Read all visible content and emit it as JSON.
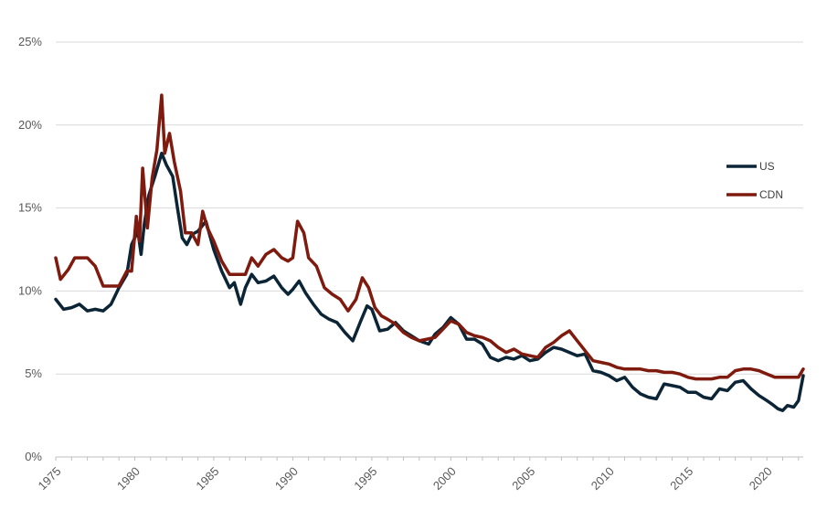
{
  "chart_data": {
    "type": "line",
    "title": "",
    "xlabel": "",
    "ylabel": "",
    "xlim": [
      1975,
      2022.3
    ],
    "ylim": [
      0,
      25
    ],
    "grid": true,
    "legend_position": "right",
    "x_ticks": [
      1975,
      1980,
      1985,
      1990,
      1995,
      2000,
      2005,
      2010,
      2015,
      2020
    ],
    "x_tick_labels": [
      "1975",
      "1980",
      "1985",
      "1990",
      "1995",
      "2000",
      "2005",
      "2010",
      "2015",
      "2020"
    ],
    "y_ticks": [
      0,
      5,
      10,
      15,
      20,
      25
    ],
    "y_tick_labels": [
      "0%",
      "5%",
      "10%",
      "15%",
      "20%",
      "25%"
    ],
    "series": [
      {
        "name": "US",
        "color": "#0b2536",
        "x": [
          1975,
          1975.5,
          1976,
          1976.5,
          1977,
          1977.5,
          1978,
          1978.5,
          1979,
          1979.5,
          1979.8,
          1980.2,
          1980.4,
          1980.6,
          1980.9,
          1981.3,
          1981.7,
          1982,
          1982.4,
          1982.7,
          1983,
          1983.3,
          1983.6,
          1984,
          1984.5,
          1985,
          1985.5,
          1986,
          1986.3,
          1986.7,
          1987,
          1987.4,
          1987.8,
          1988.3,
          1988.8,
          1989.3,
          1989.7,
          1990,
          1990.4,
          1990.8,
          1991.3,
          1991.8,
          1992.3,
          1992.8,
          1993.3,
          1993.8,
          1994.3,
          1994.7,
          1995,
          1995.5,
          1996,
          1996.5,
          1997,
          1997.5,
          1998,
          1998.6,
          1999,
          1999.5,
          2000,
          2000.5,
          2001,
          2001.5,
          2002,
          2002.5,
          2003,
          2003.5,
          2004,
          2004.5,
          2005,
          2005.5,
          2006,
          2006.5,
          2007,
          2007.5,
          2008,
          2008.5,
          2009,
          2009.5,
          2010,
          2010.5,
          2011,
          2011.5,
          2012,
          2012.5,
          2013,
          2013.5,
          2014,
          2014.5,
          2015,
          2015.5,
          2016,
          2016.5,
          2017,
          2017.5,
          2018,
          2018.5,
          2019,
          2019.5,
          2020,
          2020.3,
          2020.7,
          2021,
          2021.3,
          2021.7,
          2022,
          2022.3
        ],
        "values": [
          9.5,
          8.9,
          9.0,
          9.2,
          8.8,
          8.9,
          8.8,
          9.2,
          10.2,
          11.0,
          12.8,
          13.6,
          12.2,
          14.0,
          15.8,
          17.0,
          18.3,
          17.6,
          16.9,
          15.0,
          13.2,
          12.8,
          13.4,
          13.6,
          14.2,
          12.5,
          11.2,
          10.2,
          10.5,
          9.2,
          10.2,
          11.0,
          10.5,
          10.6,
          10.9,
          10.2,
          9.8,
          10.1,
          10.6,
          9.9,
          9.2,
          8.6,
          8.3,
          8.1,
          7.5,
          7.0,
          8.2,
          9.1,
          8.9,
          7.6,
          7.7,
          8.1,
          7.6,
          7.3,
          7.0,
          6.8,
          7.4,
          7.8,
          8.4,
          8.0,
          7.1,
          7.1,
          6.8,
          6.0,
          5.8,
          6.0,
          5.9,
          6.1,
          5.8,
          5.9,
          6.3,
          6.6,
          6.5,
          6.3,
          6.1,
          6.2,
          5.2,
          5.1,
          4.9,
          4.6,
          4.8,
          4.2,
          3.8,
          3.6,
          3.5,
          4.4,
          4.3,
          4.2,
          3.9,
          3.9,
          3.6,
          3.5,
          4.1,
          4.0,
          4.5,
          4.6,
          4.1,
          3.7,
          3.4,
          3.2,
          2.9,
          2.8,
          3.1,
          3.0,
          3.4,
          4.9
        ]
      },
      {
        "name": "CDN",
        "color": "#7f1a0e",
        "x": [
          1975,
          1975.3,
          1975.8,
          1976.2,
          1976.6,
          1977,
          1977.5,
          1978,
          1978.5,
          1979,
          1979.5,
          1979.8,
          1980.1,
          1980.3,
          1980.5,
          1980.8,
          1981.1,
          1981.4,
          1981.7,
          1981.9,
          1982.2,
          1982.5,
          1982.9,
          1983.2,
          1983.6,
          1984,
          1984.3,
          1984.6,
          1985,
          1985.5,
          1986,
          1986.5,
          1987,
          1987.4,
          1987.8,
          1988.3,
          1988.8,
          1989.3,
          1989.7,
          1990,
          1990.3,
          1990.7,
          1991,
          1991.5,
          1992,
          1992.5,
          1993,
          1993.5,
          1994,
          1994.4,
          1994.8,
          1995.2,
          1995.6,
          1996,
          1996.5,
          1997,
          1997.5,
          1998,
          1998.5,
          1999,
          1999.5,
          2000,
          2000.5,
          2001,
          2001.5,
          2002,
          2002.5,
          2003,
          2003.5,
          2004,
          2004.5,
          2005,
          2005.5,
          2006,
          2006.5,
          2007,
          2007.5,
          2008,
          2008.5,
          2009,
          2009.5,
          2010,
          2010.5,
          2011,
          2011.5,
          2012,
          2012.5,
          2013,
          2013.5,
          2014,
          2014.5,
          2015,
          2015.5,
          2016,
          2016.5,
          2017,
          2017.5,
          2018,
          2018.5,
          2019,
          2019.5,
          2020,
          2020.5,
          2021,
          2021.5,
          2022,
          2022.3
        ],
        "values": [
          12.0,
          10.7,
          11.3,
          12.0,
          12.0,
          12.0,
          11.5,
          10.3,
          10.3,
          10.3,
          11.2,
          11.2,
          14.5,
          13.0,
          17.4,
          13.8,
          16.8,
          18.5,
          21.8,
          18.3,
          19.5,
          17.8,
          16.0,
          13.5,
          13.5,
          12.8,
          14.8,
          13.8,
          13.0,
          11.8,
          11.0,
          11.0,
          11.0,
          12.0,
          11.5,
          12.2,
          12.5,
          12.0,
          11.8,
          12.0,
          14.2,
          13.5,
          12.0,
          11.5,
          10.2,
          9.8,
          9.5,
          8.8,
          9.5,
          10.8,
          10.2,
          9.0,
          8.5,
          8.3,
          8.0,
          7.5,
          7.2,
          7.0,
          7.1,
          7.2,
          7.7,
          8.2,
          8.0,
          7.5,
          7.3,
          7.2,
          7.0,
          6.6,
          6.3,
          6.5,
          6.2,
          6.1,
          6.0,
          6.6,
          6.9,
          7.3,
          7.6,
          7.0,
          6.4,
          5.8,
          5.7,
          5.6,
          5.4,
          5.3,
          5.3,
          5.3,
          5.2,
          5.2,
          5.1,
          5.1,
          5.0,
          4.8,
          4.7,
          4.7,
          4.7,
          4.8,
          4.8,
          5.2,
          5.3,
          5.3,
          5.2,
          5.0,
          4.8,
          4.8,
          4.8,
          4.8,
          5.3
        ]
      }
    ]
  }
}
